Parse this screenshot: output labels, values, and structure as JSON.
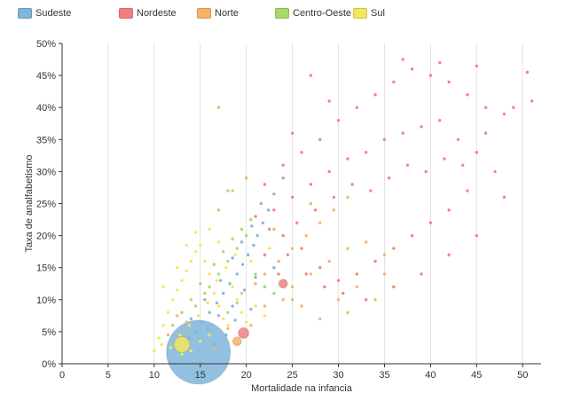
{
  "legend": [
    {
      "label": "Sudeste",
      "color": "#7fb5da"
    },
    {
      "label": "Nordeste",
      "color": "#f08080"
    },
    {
      "label": "Norte",
      "color": "#f7b266"
    },
    {
      "label": "Centro-Oeste",
      "color": "#a6d96a"
    },
    {
      "label": "Sul",
      "color": "#f2e65a"
    }
  ],
  "chart_data": {
    "type": "scatter",
    "xlabel": "Mortalidade na infancia",
    "ylabel": "Taxa de analfabetismo",
    "xlim": [
      0,
      52
    ],
    "ylim": [
      0,
      50
    ],
    "x_ticks": [
      "0",
      "5",
      "10",
      "15",
      "20",
      "25",
      "30",
      "35",
      "40",
      "45",
      "50"
    ],
    "y_ticks": [
      "0%",
      "5%",
      "10%",
      "15%",
      "20%",
      "25%",
      "30%",
      "35%",
      "40%",
      "45%",
      "50%"
    ],
    "grid": "vertical",
    "legend_position": "top-left",
    "highlighted_points": [
      {
        "series": "Sudeste",
        "x": 14.8,
        "y": 1.8
      },
      {
        "series": "Sul",
        "x": 13.0,
        "y": 3.0
      },
      {
        "series": "Nordeste",
        "x": 19.7,
        "y": 4.8
      },
      {
        "series": "Nordeste",
        "x": 24.0,
        "y": 12.5
      },
      {
        "series": "Norte",
        "x": 19.0,
        "y": 3.5
      }
    ],
    "series": [
      {
        "name": "Sudeste",
        "color": "#7fb5da",
        "points": [
          [
            14.5,
            5.0
          ],
          [
            15.2,
            6.5
          ],
          [
            16.0,
            8.0
          ],
          [
            16.8,
            9.5
          ],
          [
            17.5,
            11.0
          ],
          [
            18.2,
            12.5
          ],
          [
            19.0,
            14.0
          ],
          [
            19.6,
            15.5
          ],
          [
            20.2,
            17.0
          ],
          [
            20.8,
            18.5
          ],
          [
            21.2,
            20.0
          ],
          [
            21.8,
            22.0
          ],
          [
            22.4,
            24.0
          ],
          [
            23.0,
            26.5
          ],
          [
            24.0,
            29.0
          ],
          [
            13.8,
            4.0
          ],
          [
            15.8,
            5.5
          ],
          [
            17.0,
            7.5
          ],
          [
            18.5,
            9.0
          ],
          [
            19.8,
            11.5
          ],
          [
            21.0,
            13.5
          ],
          [
            22.0,
            12.0
          ],
          [
            23.0,
            15.0
          ],
          [
            16.5,
            3.0
          ],
          [
            17.8,
            4.5
          ],
          [
            18.8,
            6.8
          ],
          [
            20.5,
            8.5
          ],
          [
            14.0,
            7.0
          ],
          [
            15.5,
            10.0
          ],
          [
            17.2,
            13.0
          ],
          [
            18.5,
            16.5
          ],
          [
            19.5,
            19.0
          ],
          [
            20.6,
            21.5
          ],
          [
            21.6,
            25.0
          ]
        ]
      },
      {
        "name": "Nordeste",
        "color": "#f08080",
        "points": [
          [
            22.0,
            28.0
          ],
          [
            24.0,
            31.0
          ],
          [
            26.0,
            33.0
          ],
          [
            28.0,
            35.0
          ],
          [
            30.0,
            38.0
          ],
          [
            32.0,
            40.0
          ],
          [
            34.0,
            42.0
          ],
          [
            36.0,
            44.0
          ],
          [
            38.0,
            46.0
          ],
          [
            40.0,
            45.0
          ],
          [
            42.0,
            44.0
          ],
          [
            44.0,
            42.0
          ],
          [
            46.0,
            40.0
          ],
          [
            48.0,
            39.0
          ],
          [
            50.5,
            45.5
          ],
          [
            51.0,
            41.0
          ],
          [
            49.0,
            40.0
          ],
          [
            45.0,
            46.5
          ],
          [
            41.0,
            47.0
          ],
          [
            37.0,
            47.5
          ],
          [
            29.0,
            41.0
          ],
          [
            27.0,
            45.0
          ],
          [
            25.0,
            36.0
          ],
          [
            23.0,
            24.0
          ],
          [
            25.0,
            26.0
          ],
          [
            27.0,
            28.0
          ],
          [
            29.0,
            30.0
          ],
          [
            31.0,
            32.0
          ],
          [
            33.0,
            33.0
          ],
          [
            35.0,
            35.0
          ],
          [
            37.0,
            36.0
          ],
          [
            39.0,
            37.0
          ],
          [
            41.0,
            38.0
          ],
          [
            43.0,
            35.0
          ],
          [
            45.0,
            33.0
          ],
          [
            47.0,
            30.0
          ],
          [
            44.0,
            27.0
          ],
          [
            42.0,
            24.0
          ],
          [
            40.0,
            22.0
          ],
          [
            38.0,
            20.0
          ],
          [
            36.0,
            18.0
          ],
          [
            34.0,
            16.0
          ],
          [
            32.0,
            14.0
          ],
          [
            30.0,
            13.0
          ],
          [
            28.0,
            15.0
          ],
          [
            26.0,
            18.0
          ],
          [
            24.0,
            20.0
          ],
          [
            22.0,
            17.0
          ],
          [
            21.0,
            23.0
          ],
          [
            23.5,
            14.0
          ],
          [
            25.5,
            22.0
          ],
          [
            27.5,
            24.0
          ],
          [
            29.5,
            26.0
          ],
          [
            31.5,
            28.0
          ],
          [
            33.5,
            27.0
          ],
          [
            35.5,
            29.0
          ],
          [
            37.5,
            31.0
          ],
          [
            39.5,
            30.0
          ],
          [
            41.5,
            32.0
          ],
          [
            43.5,
            31.0
          ],
          [
            46.0,
            36.0
          ],
          [
            48.0,
            26.0
          ],
          [
            45.0,
            20.0
          ],
          [
            42.0,
            17.0
          ],
          [
            39.0,
            14.0
          ],
          [
            36.0,
            12.0
          ],
          [
            33.0,
            10.0
          ],
          [
            30.5,
            11.0
          ],
          [
            28.5,
            12.0
          ],
          [
            26.5,
            14.0
          ],
          [
            24.5,
            17.0
          ],
          [
            22.5,
            21.0
          ]
        ]
      },
      {
        "name": "Norte",
        "color": "#f7b266",
        "points": [
          [
            22.0,
            14.0
          ],
          [
            23.5,
            16.0
          ],
          [
            25.0,
            18.0
          ],
          [
            26.5,
            20.0
          ],
          [
            28.0,
            22.0
          ],
          [
            29.5,
            24.0
          ],
          [
            31.0,
            26.0
          ],
          [
            25.0,
            12.0
          ],
          [
            27.0,
            14.0
          ],
          [
            29.0,
            16.0
          ],
          [
            31.0,
            18.0
          ],
          [
            33.0,
            19.0
          ],
          [
            35.0,
            17.0
          ],
          [
            30.0,
            10.0
          ],
          [
            32.0,
            12.0
          ],
          [
            26.0,
            9.0
          ],
          [
            24.0,
            10.0
          ],
          [
            22.0,
            9.0
          ],
          [
            20.5,
            6.0
          ],
          [
            18.0,
            5.5
          ],
          [
            16.5,
            2.5
          ],
          [
            12.5,
            7.5
          ],
          [
            13.5,
            6.5
          ],
          [
            11.5,
            4.5
          ],
          [
            19.5,
            11.0
          ],
          [
            21.0,
            12.5
          ],
          [
            23.0,
            21.0
          ],
          [
            27.0,
            25.0
          ],
          [
            35.0,
            14.0
          ],
          [
            34.0,
            10.0
          ],
          [
            28.0,
            7.0
          ],
          [
            31.0,
            8.0
          ],
          [
            17.0,
            40.0
          ],
          [
            18.0,
            27.0
          ],
          [
            20.0,
            29.0
          ]
        ]
      },
      {
        "name": "Centro-Oeste",
        "color": "#a6d96a",
        "points": [
          [
            16.0,
            12.0
          ],
          [
            17.0,
            14.0
          ],
          [
            18.0,
            16.0
          ],
          [
            19.0,
            18.0
          ],
          [
            20.0,
            20.0
          ],
          [
            14.0,
            10.0
          ],
          [
            15.0,
            12.5
          ],
          [
            16.5,
            15.5
          ],
          [
            17.5,
            17.5
          ],
          [
            18.5,
            19.5
          ],
          [
            19.5,
            21.0
          ],
          [
            20.5,
            22.5
          ],
          [
            13.0,
            8.0
          ],
          [
            14.5,
            9.0
          ],
          [
            15.5,
            11.0
          ],
          [
            21.0,
            14.0
          ],
          [
            22.0,
            12.0
          ],
          [
            23.0,
            11.0
          ],
          [
            12.0,
            6.0
          ],
          [
            13.5,
            5.0
          ],
          [
            18.0,
            8.0
          ],
          [
            19.0,
            9.5
          ],
          [
            25.0,
            10.0
          ],
          [
            17.0,
            24.0
          ],
          [
            18.5,
            27.0
          ]
        ]
      },
      {
        "name": "Sul",
        "color": "#f2e65a",
        "points": [
          [
            10.5,
            4.0
          ],
          [
            11.0,
            6.0
          ],
          [
            11.5,
            8.0
          ],
          [
            12.0,
            10.0
          ],
          [
            12.5,
            11.5
          ],
          [
            13.0,
            13.0
          ],
          [
            13.5,
            14.5
          ],
          [
            14.0,
            16.0
          ],
          [
            14.5,
            17.5
          ],
          [
            15.0,
            18.5
          ],
          [
            15.5,
            16.0
          ],
          [
            16.0,
            14.0
          ],
          [
            16.5,
            11.0
          ],
          [
            17.0,
            9.0
          ],
          [
            17.5,
            7.0
          ],
          [
            18.0,
            6.0
          ],
          [
            18.5,
            12.0
          ],
          [
            19.0,
            10.0
          ],
          [
            19.5,
            8.0
          ],
          [
            20.0,
            6.5
          ],
          [
            10.0,
            2.0
          ],
          [
            10.8,
            3.0
          ],
          [
            11.8,
            2.5
          ],
          [
            12.8,
            4.5
          ],
          [
            13.8,
            6.0
          ],
          [
            14.8,
            7.5
          ],
          [
            15.8,
            9.5
          ],
          [
            16.8,
            13.0
          ],
          [
            17.8,
            15.0
          ],
          [
            18.8,
            17.0
          ],
          [
            13.0,
            1.5
          ],
          [
            14.0,
            2.0
          ],
          [
            15.0,
            3.5
          ],
          [
            16.0,
            4.5
          ],
          [
            11.0,
            12.0
          ],
          [
            12.5,
            15.0
          ],
          [
            13.5,
            18.5
          ],
          [
            14.5,
            20.5
          ],
          [
            16.0,
            21.0
          ],
          [
            17.0,
            19.0
          ],
          [
            21.0,
            9.0
          ],
          [
            22.0,
            7.5
          ],
          [
            20.5,
            16.0
          ],
          [
            22.5,
            18.0
          ]
        ]
      }
    ]
  }
}
